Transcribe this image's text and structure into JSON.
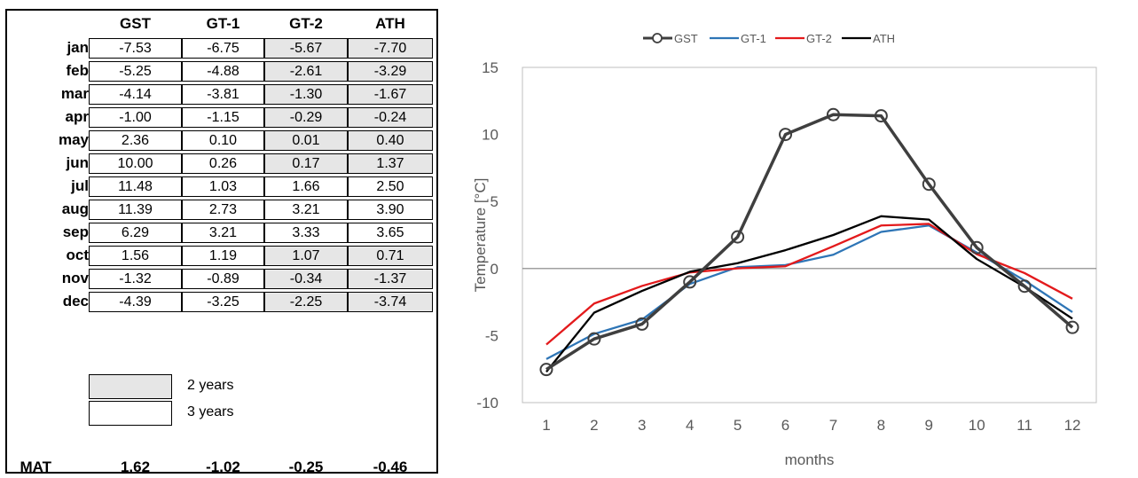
{
  "table": {
    "headers": [
      "GST",
      "GT-1",
      "GT-2",
      "ATH"
    ],
    "rows": [
      {
        "month": "jan",
        "values": [
          "-7.53",
          "-6.75",
          "-5.67",
          "-7.70"
        ],
        "shaded": true
      },
      {
        "month": "feb",
        "values": [
          "-5.25",
          "-4.88",
          "-2.61",
          "-3.29"
        ],
        "shaded": true
      },
      {
        "month": "mar",
        "values": [
          "-4.14",
          "-3.81",
          "-1.30",
          "-1.67"
        ],
        "shaded": true
      },
      {
        "month": "apr",
        "values": [
          "-1.00",
          "-1.15",
          "-0.29",
          "-0.24"
        ],
        "shaded": true
      },
      {
        "month": "may",
        "values": [
          "2.36",
          "0.10",
          "0.01",
          "0.40"
        ],
        "shaded": true
      },
      {
        "month": "jun",
        "values": [
          "10.00",
          "0.26",
          "0.17",
          "1.37"
        ],
        "shaded": true
      },
      {
        "month": "jul",
        "values": [
          "11.48",
          "1.03",
          "1.66",
          "2.50"
        ],
        "shaded": false
      },
      {
        "month": "aug",
        "values": [
          "11.39",
          "2.73",
          "3.21",
          "3.90"
        ],
        "shaded": false
      },
      {
        "month": "sep",
        "values": [
          "6.29",
          "3.21",
          "3.33",
          "3.65"
        ],
        "shaded": false
      },
      {
        "month": "oct",
        "values": [
          "1.56",
          "1.19",
          "1.07",
          "0.71"
        ],
        "shaded": true
      },
      {
        "month": "nov",
        "values": [
          "-1.32",
          "-0.89",
          "-0.34",
          "-1.37"
        ],
        "shaded": true
      },
      {
        "month": "dec",
        "values": [
          "-4.39",
          "-3.25",
          "-2.25",
          "-3.74"
        ],
        "shaded": true
      }
    ],
    "legend": [
      {
        "label": "2 years",
        "shaded": true
      },
      {
        "label": "3 years",
        "shaded": false
      }
    ],
    "mat": {
      "label": "MAT",
      "values": [
        "1.62",
        "-1.02",
        "-0.25",
        "-0.46"
      ]
    }
  },
  "chart_data": {
    "type": "line",
    "title": "",
    "xlabel": "months",
    "ylabel": "Temperature [°C]",
    "x": [
      1,
      2,
      3,
      4,
      5,
      6,
      7,
      8,
      9,
      10,
      11,
      12
    ],
    "ylim": [
      -10,
      15
    ],
    "yticks": [
      -10,
      -5,
      0,
      5,
      10,
      15
    ],
    "grid": false,
    "legend_position": "top",
    "series": [
      {
        "name": "GST",
        "color": "#3f3f3f",
        "marker": "circle",
        "values": [
          -7.53,
          -5.25,
          -4.14,
          -1.0,
          2.36,
          10.0,
          11.48,
          11.39,
          6.29,
          1.56,
          -1.32,
          -4.39
        ]
      },
      {
        "name": "GT-1",
        "color": "#2e75b6",
        "marker": "none",
        "values": [
          -6.75,
          -4.88,
          -3.81,
          -1.15,
          0.1,
          0.26,
          1.03,
          2.73,
          3.21,
          1.19,
          -0.89,
          -3.25
        ]
      },
      {
        "name": "GT-2",
        "color": "#e31a1c",
        "marker": "none",
        "values": [
          -5.67,
          -2.61,
          -1.3,
          -0.29,
          0.01,
          0.17,
          1.66,
          3.21,
          3.33,
          1.07,
          -0.34,
          -2.25
        ]
      },
      {
        "name": "ATH",
        "color": "#000000",
        "marker": "none",
        "values": [
          -7.7,
          -3.29,
          -1.67,
          -0.24,
          0.4,
          1.37,
          2.5,
          3.9,
          3.65,
          0.71,
          -1.37,
          -3.74
        ]
      }
    ]
  }
}
